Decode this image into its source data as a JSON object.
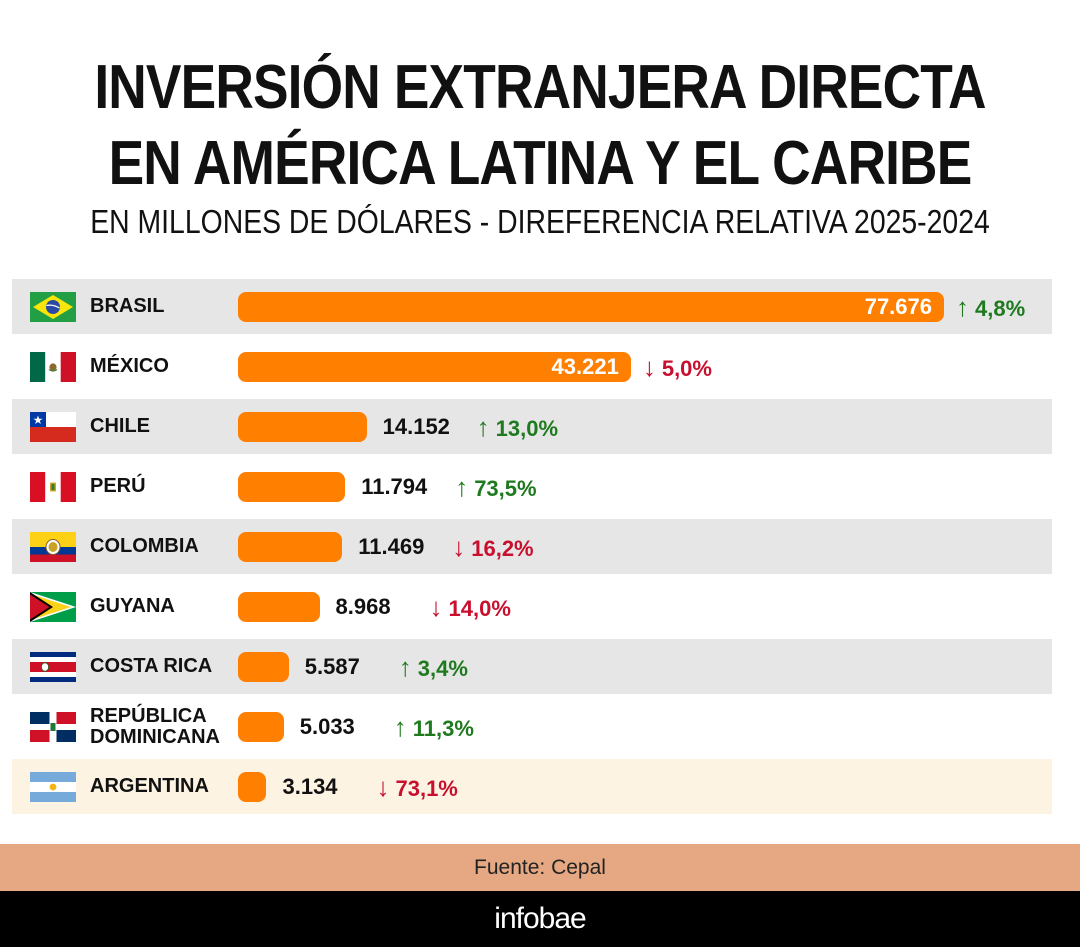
{
  "chart_data": {
    "type": "bar",
    "orientation": "horizontal",
    "title_line1": "INVERSIÓN EXTRANJERA DIRECTA",
    "title_line2": "EN AMÉRICA LATINA Y EL CARIBE",
    "subtitle": "EN MILLONES DE DÓLARES - DIREFERENCIA RELATIVA 2025-2024",
    "categories": [
      "BRASIL",
      "MÉXICO",
      "CHILE",
      "PERÚ",
      "COLOMBIA",
      "GUYANA",
      "COSTA RICA",
      "REPÚBLICA DOMINICANA",
      "ARGENTINA"
    ],
    "category_lines": [
      [
        "BRASIL"
      ],
      [
        "MÉXICO"
      ],
      [
        "CHILE"
      ],
      [
        "PERÚ"
      ],
      [
        "COLOMBIA"
      ],
      [
        "GUYANA"
      ],
      [
        "COSTA RICA"
      ],
      [
        "REPÚBLICA",
        "DOMINICANA"
      ],
      [
        "ARGENTINA"
      ]
    ],
    "values": [
      77676,
      43221,
      14152,
      11794,
      11469,
      8968,
      5587,
      5033,
      3134
    ],
    "value_labels": [
      "77.676",
      "43.221",
      "14.152",
      "11.794",
      "11.469",
      "8.968",
      "5.587",
      "5.033",
      "3.134"
    ],
    "changes": [
      {
        "direction": "up",
        "label": "4,8%"
      },
      {
        "direction": "down",
        "label": "5,0%"
      },
      {
        "direction": "up",
        "label": "13,0%"
      },
      {
        "direction": "up",
        "label": "73,5%"
      },
      {
        "direction": "down",
        "label": "16,2%"
      },
      {
        "direction": "down",
        "label": "14,0%"
      },
      {
        "direction": "up",
        "label": "3,4%"
      },
      {
        "direction": "up",
        "label": "11,3%"
      },
      {
        "direction": "down",
        "label": "73,1%"
      }
    ],
    "flag_icons": [
      "flag-brazil-icon",
      "flag-mexico-icon",
      "flag-chile-icon",
      "flag-peru-icon",
      "flag-colombia-icon",
      "flag-guyana-icon",
      "flag-costa-rica-icon",
      "flag-dominican-republic-icon",
      "flag-argentina-icon"
    ],
    "xlim": [
      0,
      77676
    ],
    "colors": {
      "bar": "#ff7f00",
      "up": "#1f7a1f",
      "down": "#c8102e",
      "row_band": "#e6e6e6",
      "row_highlight": "#fdf3e3"
    }
  },
  "footer": {
    "source": "Fuente: Cepal",
    "brand": "infobae"
  }
}
